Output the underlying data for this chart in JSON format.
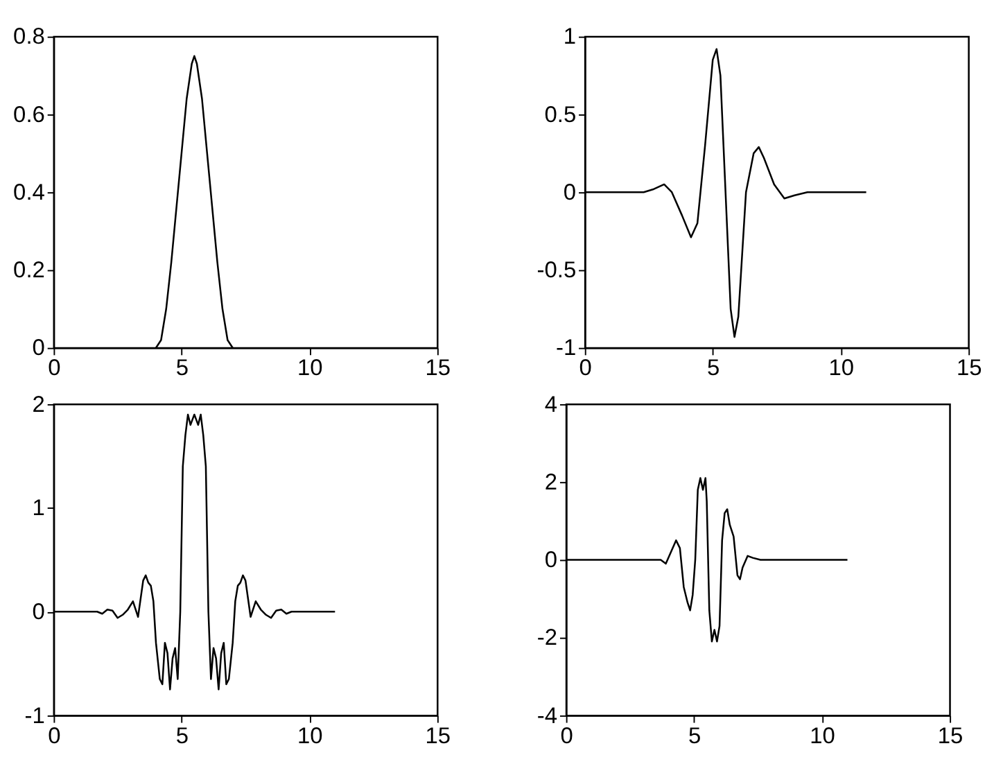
{
  "chart_data": [
    {
      "type": "line",
      "color": "#000000",
      "grid": false,
      "xlim": [
        0,
        15
      ],
      "ylim": [
        0,
        0.8
      ],
      "xticks": [
        0,
        5,
        10,
        15
      ],
      "yticks": [
        0,
        0.2,
        0.4,
        0.6,
        0.8
      ],
      "x": [
        4.0,
        4.2,
        4.4,
        4.6,
        4.8,
        5.0,
        5.2,
        5.4,
        5.5,
        5.6,
        5.8,
        6.0,
        6.2,
        6.4,
        6.6,
        6.8,
        7.0
      ],
      "values": [
        0,
        0.02,
        0.1,
        0.22,
        0.36,
        0.5,
        0.64,
        0.73,
        0.75,
        0.73,
        0.64,
        0.5,
        0.36,
        0.22,
        0.1,
        0.02,
        0
      ]
    },
    {
      "type": "line",
      "color": "#000000",
      "grid": false,
      "xlim": [
        0,
        15
      ],
      "ylim": [
        -1,
        1
      ],
      "xticks": [
        0,
        5,
        10,
        15
      ],
      "yticks": [
        -1,
        -0.5,
        0,
        0.5,
        1
      ],
      "x": [
        0,
        2.3,
        2.7,
        3.1,
        3.4,
        3.8,
        4.15,
        4.4,
        4.7,
        5.0,
        5.15,
        5.3,
        5.5,
        5.7,
        5.85,
        6.0,
        6.3,
        6.6,
        6.8,
        7.0,
        7.4,
        7.8,
        8.2,
        8.7,
        11
      ],
      "values": [
        0,
        0,
        0.02,
        0.05,
        0.0,
        -0.15,
        -0.29,
        -0.2,
        0.3,
        0.85,
        0.92,
        0.75,
        0,
        -0.75,
        -0.93,
        -0.8,
        0,
        0.25,
        0.29,
        0.22,
        0.05,
        -0.04,
        -0.02,
        0,
        0
      ]
    },
    {
      "type": "line",
      "color": "#000000",
      "grid": false,
      "xlim": [
        0,
        15
      ],
      "ylim": [
        -1,
        2
      ],
      "xticks": [
        0,
        5,
        10,
        15
      ],
      "yticks": [
        -1,
        0,
        1,
        2
      ],
      "x": [
        0,
        1.7,
        1.9,
        2.1,
        2.3,
        2.5,
        2.7,
        2.9,
        3.1,
        3.3,
        3.5,
        3.6,
        3.7,
        3.8,
        3.9,
        4.0,
        4.15,
        4.25,
        4.35,
        4.45,
        4.55,
        4.65,
        4.75,
        4.85,
        4.95,
        5.05,
        5.15,
        5.25,
        5.35,
        5.5,
        5.65,
        5.75,
        5.85,
        5.95,
        6.05,
        6.15,
        6.25,
        6.35,
        6.45,
        6.55,
        6.65,
        6.75,
        6.85,
        7.0,
        7.1,
        7.2,
        7.3,
        7.4,
        7.5,
        7.7,
        7.9,
        8.1,
        8.3,
        8.5,
        8.7,
        8.9,
        9.1,
        9.3,
        11
      ],
      "values": [
        0,
        0,
        -0.02,
        0.02,
        0.01,
        -0.06,
        -0.03,
        0.02,
        0.1,
        -0.05,
        0.3,
        0.35,
        0.28,
        0.25,
        0.1,
        -0.3,
        -0.65,
        -0.7,
        -0.3,
        -0.4,
        -0.75,
        -0.45,
        -0.35,
        -0.65,
        0.0,
        1.4,
        1.7,
        1.9,
        1.8,
        1.9,
        1.8,
        1.9,
        1.7,
        1.4,
        0.0,
        -0.65,
        -0.35,
        -0.45,
        -0.75,
        -0.4,
        -0.3,
        -0.7,
        -0.65,
        -0.3,
        0.1,
        0.25,
        0.28,
        0.35,
        0.3,
        -0.05,
        0.1,
        0.02,
        -0.03,
        -0.06,
        0.01,
        0.02,
        -0.02,
        0,
        0
      ]
    },
    {
      "type": "line",
      "color": "#000000",
      "grid": false,
      "xlim": [
        0,
        15
      ],
      "ylim": [
        -4,
        4
      ],
      "xticks": [
        0,
        5,
        10,
        15
      ],
      "yticks": [
        -4,
        -2,
        0,
        2,
        4
      ],
      "x": [
        0,
        3.7,
        3.9,
        4.1,
        4.3,
        4.45,
        4.6,
        4.75,
        4.85,
        4.95,
        5.05,
        5.15,
        5.25,
        5.35,
        5.45,
        5.5,
        5.6,
        5.7,
        5.8,
        5.9,
        6.0,
        6.1,
        6.2,
        6.3,
        6.4,
        6.55,
        6.7,
        6.8,
        6.9,
        7.1,
        7.3,
        7.6,
        11
      ],
      "values": [
        0,
        0,
        -0.1,
        0.2,
        0.5,
        0.3,
        -0.7,
        -1.1,
        -1.3,
        -0.9,
        0,
        1.8,
        2.1,
        1.8,
        2.1,
        1.5,
        -1.3,
        -2.1,
        -1.8,
        -2.1,
        -1.7,
        0.5,
        1.2,
        1.3,
        0.9,
        0.6,
        -0.4,
        -0.5,
        -0.2,
        0.1,
        0.05,
        0,
        0
      ]
    }
  ]
}
